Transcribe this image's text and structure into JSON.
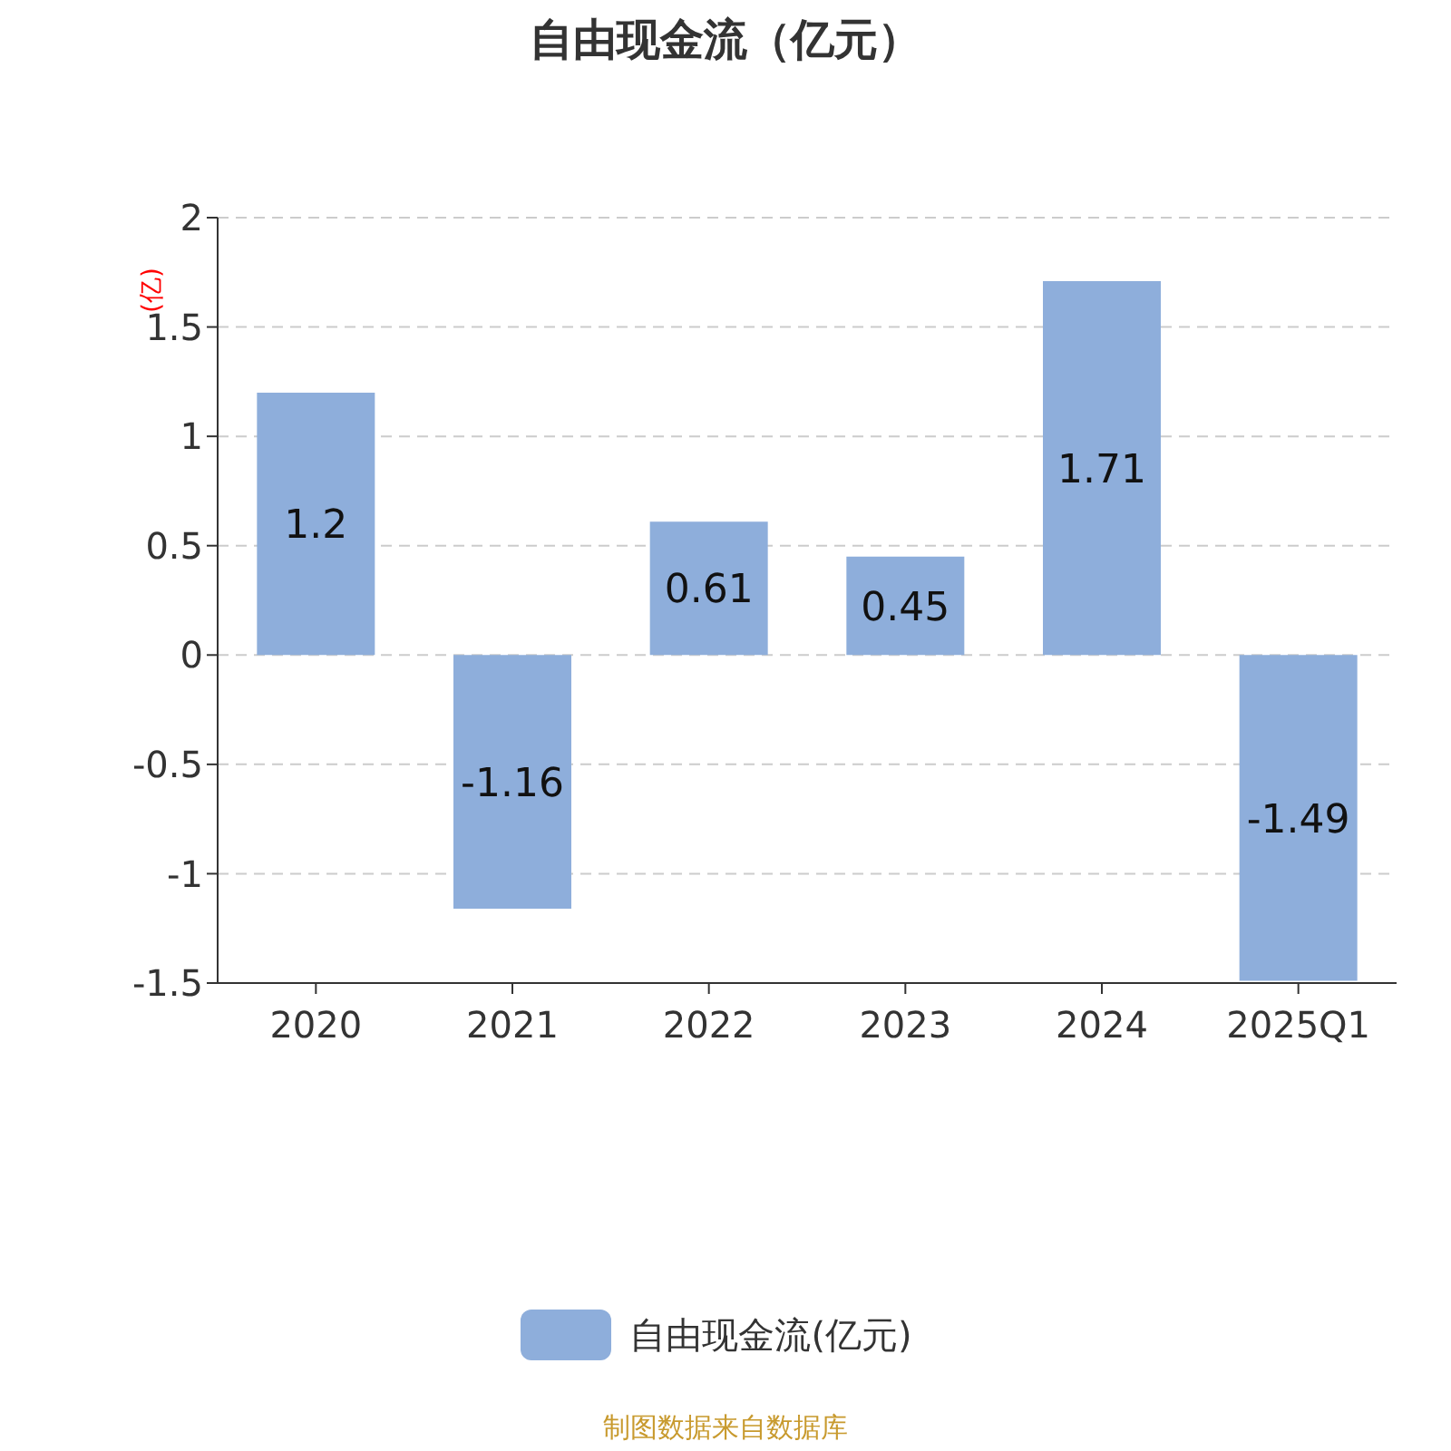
{
  "chart_data": {
    "type": "bar",
    "title": "自由现金流（亿元）",
    "ylabel": "(亿)",
    "categories": [
      "2020",
      "2021",
      "2022",
      "2023",
      "2024",
      "2025Q1"
    ],
    "series": [
      {
        "name": "自由现金流(亿元)",
        "color": "#8eaedb",
        "values": [
          1.2,
          -1.16,
          0.61,
          0.45,
          1.71,
          -1.49
        ]
      }
    ],
    "ylim": [
      -1.5,
      2
    ],
    "yticks": [
      -1.5,
      -1,
      -0.5,
      0,
      0.5,
      1,
      1.5,
      2
    ],
    "grid": "y",
    "legend": "bottom",
    "data_labels": true,
    "annotations": [
      "制图数据来自数据库"
    ]
  }
}
